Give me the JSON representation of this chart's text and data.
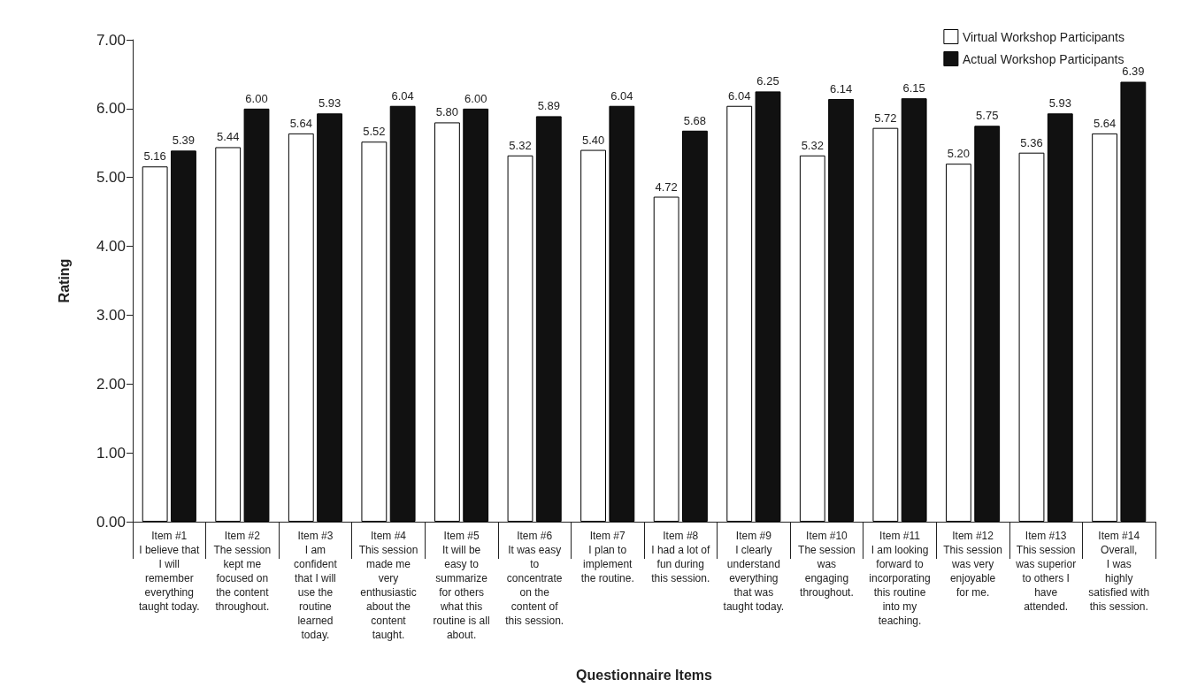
{
  "chart_data": {
    "type": "bar",
    "xlabel": "Questionnaire Items",
    "ylabel": "Rating",
    "categories": [
      "Item #1\nI believe that\nI will\nremember\neverything\ntaught today.",
      "Item #2\nThe session\nkept me\nfocused on\nthe content\nthroughout.",
      "Item #3\nI am\nconfident\nthat I will\nuse the\nroutine\nlearned\ntoday.",
      "Item #4\nThis session\nmade me\nvery\nenthusiastic\nabout the\ncontent\ntaught.",
      "Item #5\nIt will be\neasy to\nsummarize\nfor others\nwhat this\nroutine is all\nabout.",
      "Item #6\nIt was easy\nto\nconcentrate\non the\ncontent of\nthis session.",
      "Item #7\nI plan to\nimplement\nthe routine.",
      "Item #8\nI had a lot of\nfun during\nthis session.",
      "Item #9\nI clearly\nunderstand\neverything\nthat was\ntaught today.",
      "Item #10\nThe session\nwas\nengaging\nthroughout.",
      "Item #11\nI am looking\nforward to\nincorporating\nthis routine\ninto my\nteaching.",
      "Item #12\nThis session\nwas very\nenjoyable\nfor me.",
      "Item #13\nThis session\nwas superior\nto others I\nhave\nattended.",
      "Item #14\nOverall,\nI was\nhighly\nsatisfied with\nthis session."
    ],
    "series": [
      {
        "name": "Virtual Workshop Participants",
        "color": "#ffffff",
        "values": [
          5.16,
          5.44,
          5.64,
          5.52,
          5.8,
          5.32,
          5.4,
          4.72,
          6.04,
          5.32,
          5.72,
          5.2,
          5.36,
          5.64
        ],
        "value_labels": [
          "5.16",
          "5.44",
          "5.64",
          "5.52",
          "5.80",
          "5.32",
          "5.40",
          "4.72",
          "6.04",
          "5.32",
          "5.72",
          "5.20",
          "5.36",
          "5.64"
        ]
      },
      {
        "name": "Actual Workshop Participants",
        "color": "#111111",
        "values": [
          5.39,
          6.0,
          5.93,
          6.04,
          6.0,
          5.89,
          6.04,
          5.68,
          6.25,
          6.14,
          6.15,
          5.75,
          5.93,
          6.39
        ],
        "value_labels": [
          "5.39",
          "6.00",
          "5.93",
          "6.04",
          "6.00",
          "5.89",
          "6.04",
          "5.68",
          "6.25",
          "6.14",
          "6.15",
          "5.75",
          "5.93",
          "6.39"
        ]
      }
    ],
    "ylim": [
      0,
      7
    ],
    "yticks": [
      {
        "value": 0,
        "label": "0.00"
      },
      {
        "value": 1,
        "label": "1.00"
      },
      {
        "value": 2,
        "label": "2.00"
      },
      {
        "value": 3,
        "label": "3.00"
      },
      {
        "value": 4,
        "label": "4.00"
      },
      {
        "value": 5,
        "label": "5.00"
      },
      {
        "value": 6,
        "label": "6.00"
      },
      {
        "value": 7,
        "label": "7.00"
      }
    ],
    "grid": false,
    "legend": "top right"
  }
}
